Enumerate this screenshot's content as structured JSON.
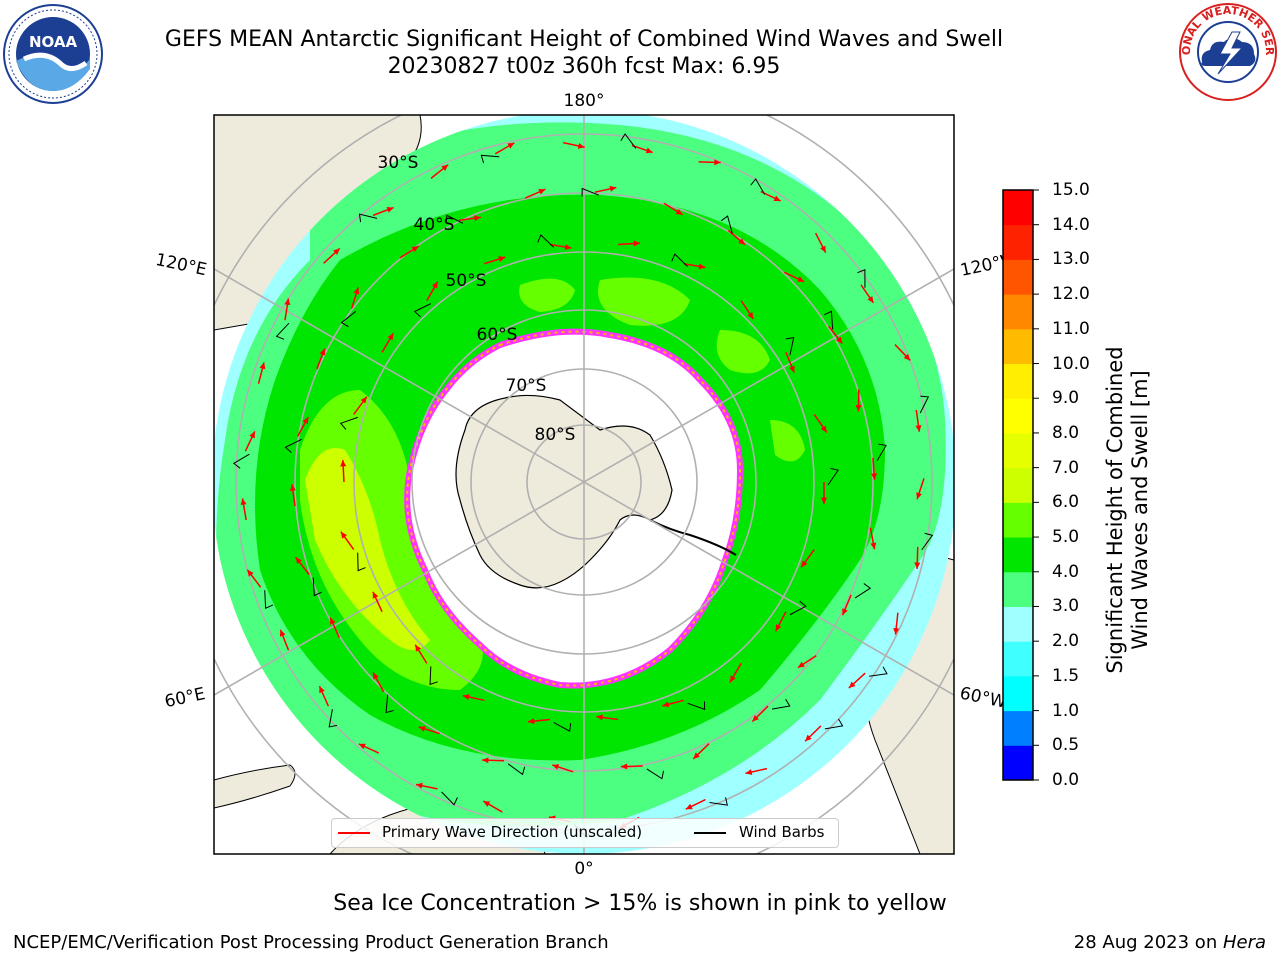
{
  "header": {
    "title": "GEFS MEAN Antarctic Significant Height of Combined Wind Waves and Swell",
    "subtitle": "20230827 t00z 360h fcst   Max: 6.95"
  },
  "logos": {
    "left": "NOAA",
    "right": "NATIONAL WEATHER SERVICE",
    "noaa_ring_text": "NATIONAL OCEANIC AND ATMOSPHERIC ADMINISTRATION · U.S. DEPARTMENT OF COMMERCE"
  },
  "map": {
    "longitude_labels": {
      "top": "180°",
      "bottom": "0°",
      "upper_left": "120°E",
      "upper_right": "120°W",
      "lower_left": "60°E",
      "lower_right": "60°W"
    },
    "latitude_labels": [
      "30°S",
      "40°S",
      "50°S",
      "60°S",
      "70°S",
      "80°S"
    ],
    "legend": {
      "wave_direction": "Primary Wave Direction (unscaled)",
      "wind_barbs": "Wind Barbs",
      "wave_color": "#ff0000",
      "barb_color": "#000000"
    },
    "colors": {
      "land": "#efebdc",
      "ice": "#ffffff",
      "ice_edge": "#ff33ff",
      "grid": "#b0b0b0"
    }
  },
  "colorbar": {
    "title_line1": "Significant Height of Combined",
    "title_line2": "Wind Waves and Swell [m]",
    "ticks": [
      "0.0",
      "0.5",
      "1.0",
      "1.5",
      "2.0",
      "3.0",
      "4.0",
      "5.0",
      "6.0",
      "7.0",
      "8.0",
      "9.0",
      "10.0",
      "11.0",
      "12.0",
      "13.0",
      "14.0",
      "15.0"
    ],
    "colors": [
      "#0000ff",
      "#0080ff",
      "#00ffff",
      "#40ffff",
      "#a0ffff",
      "#4dff80",
      "#00e600",
      "#66ff00",
      "#ccff00",
      "#e6ff00",
      "#ffff00",
      "#ffee00",
      "#ffbb00",
      "#ff8800",
      "#ff5500",
      "#ff2200",
      "#ff0000"
    ]
  },
  "footer": {
    "note": "Sea Ice Concentration > 15% is shown in pink to yellow",
    "credit": "NCEP/EMC/Verification Post Processing Product Generation Branch",
    "date_prefix": "28 Aug 2023 on ",
    "machine": "Hera"
  }
}
